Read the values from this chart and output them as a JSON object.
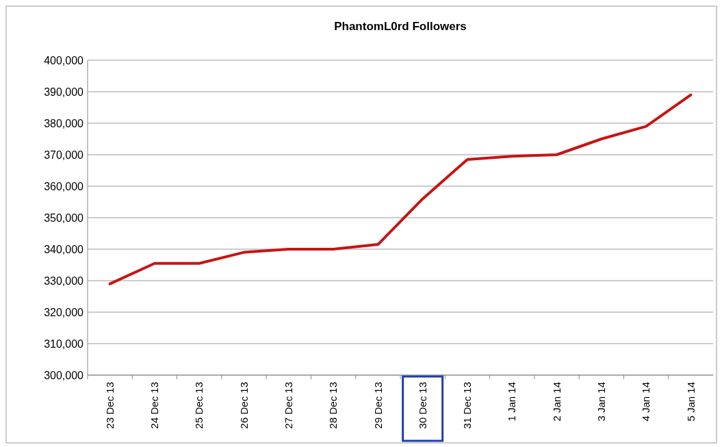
{
  "chart_data": {
    "type": "line",
    "title": "PhantomL0rd Followers",
    "categories": [
      "23 Dec 13",
      "24 Dec 13",
      "25 Dec 13",
      "26 Dec 13",
      "27 Dec 13",
      "28 Dec 13",
      "29 Dec 13",
      "30 Dec 13",
      "31 Dec 13",
      "1 Jan 14",
      "2 Jan 14",
      "3 Jan 14",
      "4 Jan 14",
      "5 Jan 14"
    ],
    "series": [
      {
        "color": "#c81414",
        "values": [
          329000,
          335500,
          335500,
          339000,
          340000,
          340000,
          341500,
          356000,
          368500,
          369500,
          370000,
          375000,
          379000,
          389000
        ]
      }
    ],
    "ylim": [
      300000,
      400000
    ],
    "yticks": [
      {
        "value": 300000,
        "label": "300,000"
      },
      {
        "value": 310000,
        "label": "310,000"
      },
      {
        "value": 320000,
        "label": "320,000"
      },
      {
        "value": 330000,
        "label": "330,000"
      },
      {
        "value": 340000,
        "label": "340,000"
      },
      {
        "value": 350000,
        "label": "350,000"
      },
      {
        "value": 360000,
        "label": "360,000"
      },
      {
        "value": 370000,
        "label": "370,000"
      },
      {
        "value": 380000,
        "label": "380,000"
      },
      {
        "value": 390000,
        "label": "390,000"
      },
      {
        "value": 400000,
        "label": "400,000"
      }
    ],
    "grid": "y",
    "marker": "none",
    "line_style": "solid"
  }
}
